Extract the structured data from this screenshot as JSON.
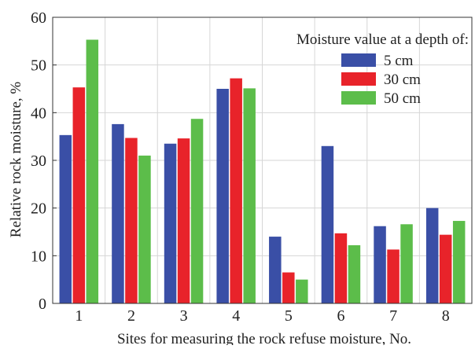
{
  "chart_data": {
    "type": "bar",
    "title": "",
    "xlabel": "Sites for measuring the rock refuse moisture, No.",
    "ylabel": "Relative rock moisture, %",
    "categories": [
      "1",
      "2",
      "3",
      "4",
      "5",
      "6",
      "7",
      "8"
    ],
    "ylim": [
      0,
      60
    ],
    "yticks": [
      0,
      10,
      20,
      30,
      40,
      50,
      60
    ],
    "grid": true,
    "legend": {
      "title": "Moisture value at a depth of:",
      "placement": "top-right"
    },
    "series": [
      {
        "name": "5 cm",
        "color": "#3a4fa6",
        "values": [
          35.3,
          37.6,
          33.5,
          45.0,
          14.0,
          33.0,
          16.2,
          20.0
        ]
      },
      {
        "name": "30 cm",
        "color": "#e8232a",
        "values": [
          45.3,
          34.7,
          34.6,
          47.2,
          6.5,
          14.7,
          11.3,
          14.4
        ]
      },
      {
        "name": "50 cm",
        "color": "#5cbd4a",
        "values": [
          55.3,
          31.0,
          38.7,
          45.1,
          5.0,
          12.2,
          16.6,
          17.3
        ]
      }
    ]
  }
}
